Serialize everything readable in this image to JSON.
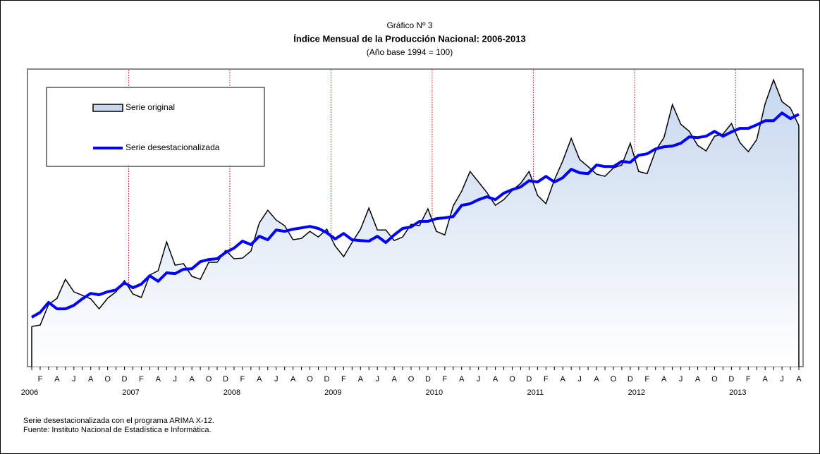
{
  "chart_data": {
    "type": "line",
    "supertitle": "Gráfico Nº 3",
    "title": "Índice Mensual de la Producción Nacional: 2006-2013",
    "subtitle": "(Año base 1994 = 100)",
    "categories": [
      "2006",
      "F",
      null,
      "A",
      null,
      "J",
      null,
      "A",
      null,
      "O",
      null,
      "D",
      "2007",
      "F",
      null,
      "A",
      null,
      "J",
      null,
      "A",
      null,
      "O",
      null,
      "D",
      "2008",
      "F",
      null,
      "A",
      null,
      "J",
      null,
      "A",
      null,
      "O",
      null,
      "D",
      "2009",
      "F",
      null,
      "A",
      null,
      "J",
      null,
      "A",
      null,
      "O",
      null,
      "D",
      "2010",
      "F",
      null,
      "A",
      null,
      "J",
      null,
      "A",
      null,
      "O",
      null,
      "D",
      "2011",
      "F",
      null,
      "A",
      null,
      "J",
      null,
      "A",
      null,
      "O",
      null,
      "D",
      "2012",
      "F",
      null,
      "A",
      null,
      "J",
      null,
      "A",
      null,
      "O",
      null,
      "D",
      "2013",
      "F",
      null,
      "A",
      null,
      "J",
      null,
      "A"
    ],
    "series": [
      {
        "name": "Serie original",
        "color": "#000000",
        "fill_color": "#c6d7ee",
        "area": true,
        "values": [
          165.5,
          166.2,
          176.7,
          179.9,
          189.6,
          183.2,
          181.4,
          179.6,
          174.5,
          179.9,
          183.2,
          188.9,
          182.1,
          180.3,
          191.8,
          194.0,
          208.7,
          196.8,
          197.6,
          191.1,
          189.6,
          198.3,
          198.3,
          204.4,
          200.1,
          200.4,
          204.0,
          218.4,
          224.9,
          219.9,
          217.0,
          209.8,
          210.5,
          214.1,
          211.2,
          215.2,
          206.6,
          201.2,
          208.4,
          215.2,
          226.0,
          214.8,
          214.8,
          209.4,
          211.2,
          217.7,
          217.0,
          225.6,
          214.1,
          212.3,
          227.1,
          234.6,
          244.7,
          239.3,
          233.9,
          227.4,
          230.3,
          235.0,
          238.6,
          244.7,
          232.5,
          228.2,
          240.4,
          250.1,
          261.6,
          250.8,
          247.2,
          243.3,
          242.2,
          246.5,
          248.0,
          259.1,
          244.7,
          243.6,
          255.2,
          262.0,
          278.9,
          268.8,
          265.2,
          258.0,
          255.2,
          262.7,
          263.8,
          269.2,
          259.5,
          254.8,
          260.9,
          279.3,
          291.5,
          280.4,
          277.1,
          268.1
        ]
      },
      {
        "name": "Serie desestacionalizada",
        "color": "#0000ff",
        "area": false,
        "values": [
          170.2,
          172.7,
          177.8,
          174.5,
          174.5,
          176.3,
          179.6,
          182.4,
          181.7,
          183.2,
          184.2,
          187.8,
          185.3,
          187.1,
          191.4,
          188.6,
          192.9,
          192.5,
          194.7,
          195.0,
          198.6,
          199.7,
          200.1,
          203.3,
          205.5,
          209.1,
          207.3,
          211.6,
          209.8,
          214.8,
          214.1,
          215.2,
          215.9,
          216.6,
          215.6,
          213.4,
          210.2,
          213.0,
          209.8,
          209.4,
          209.1,
          211.6,
          208.4,
          212.3,
          215.6,
          216.3,
          219.2,
          219.2,
          220.6,
          221.0,
          221.7,
          227.4,
          228.2,
          230.3,
          231.8,
          230.3,
          233.6,
          235.4,
          236.8,
          240.0,
          239.3,
          242.2,
          239.3,
          241.5,
          245.8,
          244.0,
          243.6,
          248.0,
          247.2,
          247.2,
          249.8,
          249.4,
          253.0,
          253.7,
          256.2,
          257.3,
          257.7,
          259.1,
          262.4,
          262.0,
          262.7,
          265.2,
          262.7,
          264.9,
          266.7,
          266.7,
          268.5,
          270.6,
          270.6,
          274.6,
          271.7,
          273.9
        ]
      }
    ],
    "ylim": [
      145,
      297
    ],
    "year_lines": true,
    "legend": "upper left",
    "notes": [
      "Serie desestacionalizada con el programa ARIMA X-12.",
      "Fuente: Instituto Nacional de Estadística e Informática."
    ]
  }
}
